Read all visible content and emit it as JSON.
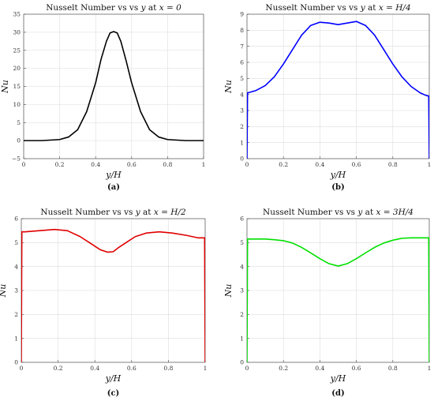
{
  "chart_data": [
    {
      "type": "line",
      "title": "Nusselt Number vs y at x = 0",
      "xlabel": "y/H",
      "ylabel": "Nu",
      "caption": "(a)",
      "xlim": [
        0,
        1
      ],
      "ylim": [
        -5,
        35
      ],
      "xticks": [
        "0",
        "0.2",
        "0.4",
        "0.6",
        "0.8",
        "1"
      ],
      "yticks": [
        "−5",
        "0",
        "5",
        "10",
        "15",
        "20",
        "25",
        "30",
        "35"
      ],
      "grid": true,
      "color": "#000000",
      "x": [
        0,
        0.1,
        0.2,
        0.25,
        0.3,
        0.35,
        0.4,
        0.43,
        0.46,
        0.48,
        0.5,
        0.52,
        0.54,
        0.57,
        0.6,
        0.65,
        0.7,
        0.75,
        0.8,
        0.9,
        1
      ],
      "y": [
        0,
        0,
        0.3,
        1.0,
        3.0,
        8.0,
        16.0,
        22.5,
        27.5,
        29.8,
        30.2,
        29.8,
        27.5,
        22.0,
        16.0,
        8.0,
        3.0,
        1.0,
        0.3,
        0,
        0
      ]
    },
    {
      "type": "line",
      "title": "Nusselt Number vs y at x = H/4",
      "xlabel": "y/H",
      "ylabel": "Nu",
      "caption": "(b)",
      "xlim": [
        0,
        1
      ],
      "ylim": [
        0,
        9
      ],
      "xticks": [
        "0",
        "0.2",
        "0.4",
        "0.6",
        "0.8",
        "1"
      ],
      "yticks": [
        "0",
        "1",
        "2",
        "3",
        "4",
        "5",
        "6",
        "7",
        "8",
        "9"
      ],
      "grid": true,
      "color": "#0000ff",
      "x": [
        0,
        0.003,
        0.02,
        0.05,
        0.1,
        0.15,
        0.2,
        0.25,
        0.3,
        0.35,
        0.4,
        0.45,
        0.5,
        0.55,
        0.6,
        0.65,
        0.7,
        0.75,
        0.8,
        0.85,
        0.9,
        0.95,
        0.98,
        0.997,
        1
      ],
      "y": [
        0,
        4.1,
        4.15,
        4.25,
        4.55,
        5.1,
        5.9,
        6.8,
        7.7,
        8.3,
        8.5,
        8.45,
        8.35,
        8.45,
        8.55,
        8.3,
        7.7,
        6.8,
        5.9,
        5.1,
        4.5,
        4.1,
        3.95,
        3.9,
        0
      ]
    },
    {
      "type": "line",
      "title": "Nusselt Number vs y at x = H/2",
      "xlabel": "y/H",
      "ylabel": "Nu",
      "caption": "(c)",
      "xlim": [
        0,
        1
      ],
      "ylim": [
        0,
        6
      ],
      "xticks": [
        "0",
        "0.2",
        "0.4",
        "0.6",
        "0.8",
        "1"
      ],
      "yticks": [
        "0",
        "1",
        "2",
        "3",
        "4",
        "5",
        "6"
      ],
      "grid": true,
      "color": "#e00000",
      "x": [
        0,
        0.003,
        0.02,
        0.1,
        0.18,
        0.25,
        0.32,
        0.38,
        0.43,
        0.47,
        0.5,
        0.53,
        0.57,
        0.62,
        0.68,
        0.75,
        0.82,
        0.9,
        0.96,
        0.997,
        1
      ],
      "y": [
        0,
        5.45,
        5.45,
        5.5,
        5.55,
        5.5,
        5.25,
        4.95,
        4.7,
        4.6,
        4.62,
        4.8,
        5.0,
        5.25,
        5.4,
        5.45,
        5.4,
        5.3,
        5.2,
        5.2,
        0
      ]
    },
    {
      "type": "line",
      "title": "Nusselt Number vs y at x = 3H/4",
      "xlabel": "y/H",
      "ylabel": "Nu",
      "caption": "(d)",
      "xlim": [
        0,
        1
      ],
      "ylim": [
        0,
        6
      ],
      "xticks": [
        "0",
        "0.2",
        "0.4",
        "0.6",
        "0.8",
        "1"
      ],
      "yticks": [
        "0",
        "1",
        "2",
        "3",
        "4",
        "5",
        "6"
      ],
      "grid": true,
      "color": "#00e000",
      "x": [
        0,
        0.003,
        0.05,
        0.1,
        0.15,
        0.2,
        0.25,
        0.3,
        0.35,
        0.4,
        0.45,
        0.5,
        0.55,
        0.6,
        0.65,
        0.7,
        0.75,
        0.8,
        0.85,
        0.9,
        0.95,
        0.997,
        1
      ],
      "y": [
        0,
        5.15,
        5.15,
        5.15,
        5.12,
        5.08,
        4.98,
        4.8,
        4.57,
        4.33,
        4.12,
        4.02,
        4.12,
        4.33,
        4.57,
        4.8,
        4.98,
        5.1,
        5.18,
        5.2,
        5.2,
        5.2,
        0
      ]
    }
  ]
}
